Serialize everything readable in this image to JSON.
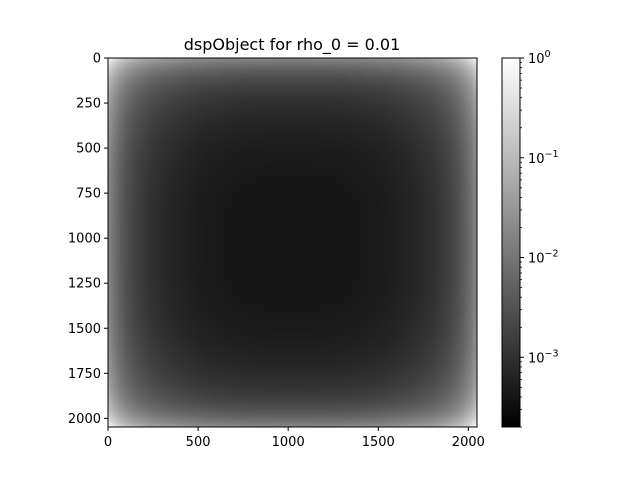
{
  "chart_data": {
    "type": "heatmap",
    "title": "dspObject for rho_0 = 0.01",
    "xlabel": "",
    "ylabel": "",
    "xlim": [
      0,
      2048
    ],
    "ylim": [
      2048,
      0
    ],
    "x_ticks": [
      "0",
      "500",
      "1000",
      "1500",
      "2000"
    ],
    "y_ticks": [
      "0",
      "250",
      "500",
      "750",
      "1000",
      "1250",
      "1500",
      "1750",
      "2000"
    ],
    "colormap": "gray",
    "colorbar": {
      "scale": "log",
      "range": [
        0.0002,
        1
      ],
      "ticks": [
        {
          "value": 1,
          "base": "10",
          "exponent": "0"
        },
        {
          "value": 0.1,
          "base": "10",
          "exponent": "−1"
        },
        {
          "value": 0.01,
          "base": "10",
          "exponent": "−2"
        },
        {
          "value": 0.001,
          "base": "10",
          "exponent": "−3"
        }
      ]
    },
    "description_values": {
      "corner_value": 1,
      "center_value": 0.0002,
      "pattern": "bright corners, dark cross through center (FFT-shift style)"
    }
  }
}
